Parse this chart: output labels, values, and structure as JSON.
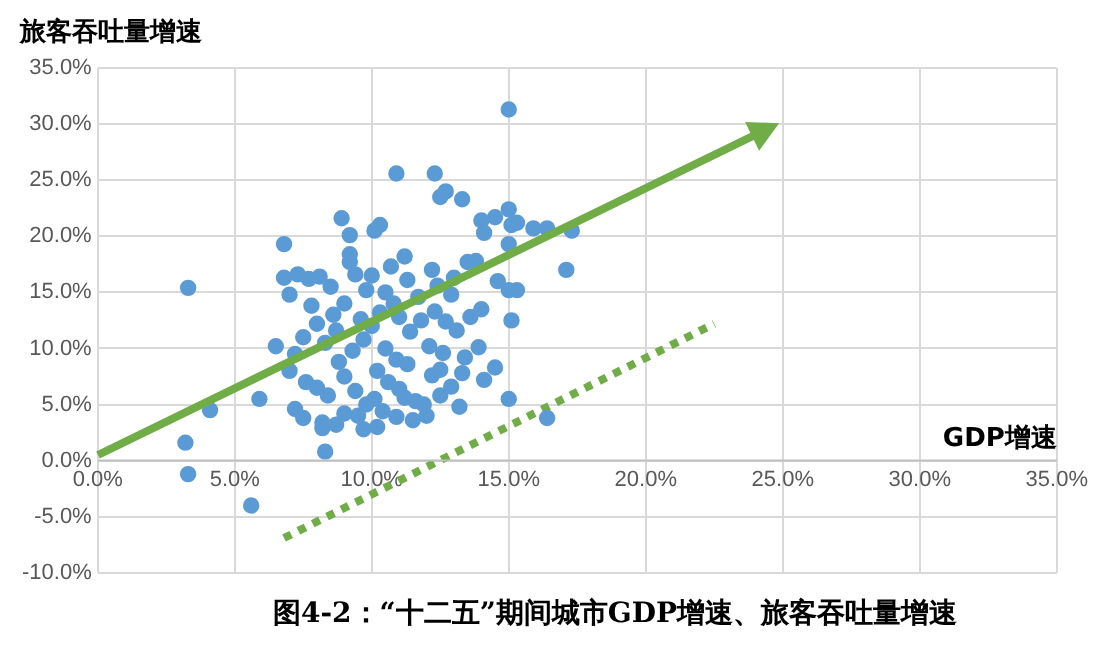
{
  "chart_data": {
    "type": "scatter",
    "title": "图4-2：“十二五”期间城市GDP增速、旅客吞吐量增速",
    "xlabel": "GDP增速",
    "ylabel": "旅客吞吐量增速",
    "xlim": [
      0,
      35
    ],
    "ylim": [
      -10,
      35
    ],
    "xticks": [
      {
        "value": 0,
        "label": "0.0%"
      },
      {
        "value": 5,
        "label": "5.0%"
      },
      {
        "value": 10,
        "label": "10.0%"
      },
      {
        "value": 15,
        "label": "15.0%"
      },
      {
        "value": 20,
        "label": "20.0%"
      },
      {
        "value": 25,
        "label": "25.0%"
      },
      {
        "value": 30,
        "label": "30.0%"
      },
      {
        "value": 35,
        "label": "35.0%"
      }
    ],
    "yticks": [
      {
        "value": -10,
        "label": "-10.0%"
      },
      {
        "value": -5,
        "label": "-5.0%"
      },
      {
        "value": 0,
        "label": "0.0%"
      },
      {
        "value": 5,
        "label": "5.0%"
      },
      {
        "value": 10,
        "label": "10.0%"
      },
      {
        "value": 15,
        "label": "15.0%"
      },
      {
        "value": 20,
        "label": "20.0%"
      },
      {
        "value": 25,
        "label": "25.0%"
      },
      {
        "value": 30,
        "label": "30.0%"
      },
      {
        "value": 35,
        "label": "35.0%"
      }
    ],
    "grid": true,
    "marker": "circle",
    "series": [
      {
        "color": "#5b9bd5",
        "x": [
          3.3,
          3.2,
          3.3,
          4.1,
          5.6,
          5.9,
          6.5,
          8.3,
          15.0,
          17.1,
          17.3,
          16.4,
          15.9,
          16.4,
          15.0,
          6.8,
          8.9,
          9.2,
          10.1,
          10.3,
          9.2,
          9.2,
          10.9,
          12.3,
          12.5,
          12.7,
          13.3,
          14.0,
          14.1,
          14.5,
          15.0,
          15.1,
          15.3,
          15.0,
          15.0,
          15.3,
          11.2,
          13.8,
          12.2,
          11.3,
          13.5,
          12.9,
          15.1,
          13.9,
          14.5,
          13.3,
          12.5,
          12.2,
          11.6,
          11.2,
          11.9,
          13.2,
          14.1,
          6.8,
          7.0,
          7.3,
          7.7,
          8.1,
          8.5,
          9.4,
          10.0,
          9.8,
          10.5,
          9.0,
          8.6,
          8.0,
          7.5,
          7.2,
          7.0,
          7.6,
          8.0,
          8.4,
          7.2,
          7.5,
          8.2,
          8.7,
          9.0,
          9.5,
          9.8,
          9.4,
          9.0,
          8.8,
          9.3,
          9.7,
          10.0,
          10.3,
          10.8,
          11.0,
          11.4,
          11.8,
          12.3,
          12.7,
          13.1,
          13.6,
          14.0,
          10.5,
          10.9,
          11.3,
          10.2,
          10.6,
          11.0,
          10.1,
          10.4,
          10.9,
          11.5,
          12.0,
          12.5,
          12.9,
          13.4,
          12.1,
          12.6,
          9.6,
          8.3,
          8.7,
          7.8,
          11.7,
          12.4,
          13.0,
          10.7,
          14.6,
          8.2,
          9.7,
          10.2
        ],
        "values": [
          15.4,
          1.6,
          -1.2,
          4.5,
          -4.0,
          5.5,
          10.2,
          0.8,
          31.3,
          17.0,
          20.5,
          20.7,
          20.7,
          3.8,
          5.5,
          19.3,
          21.6,
          20.1,
          20.5,
          21.0,
          18.4,
          17.7,
          25.6,
          25.6,
          23.5,
          24.0,
          23.3,
          21.4,
          20.3,
          21.7,
          22.4,
          21.0,
          21.2,
          19.3,
          15.2,
          15.2,
          18.2,
          17.8,
          17.0,
          16.1,
          17.7,
          14.8,
          12.5,
          10.1,
          8.3,
          7.8,
          8.1,
          7.6,
          5.3,
          5.6,
          5.0,
          4.8,
          7.2,
          16.3,
          14.8,
          16.6,
          16.2,
          16.4,
          15.5,
          16.6,
          16.5,
          15.2,
          15.0,
          14.0,
          13.0,
          12.2,
          11.0,
          9.5,
          8.0,
          7.0,
          6.5,
          5.8,
          4.6,
          3.8,
          3.4,
          3.2,
          4.2,
          4.0,
          5.0,
          6.2,
          7.5,
          8.8,
          9.8,
          10.8,
          12.0,
          13.2,
          14.0,
          12.8,
          11.5,
          12.5,
          13.3,
          12.4,
          11.6,
          12.8,
          13.5,
          10.0,
          9.0,
          8.6,
          8.0,
          7.0,
          6.4,
          5.5,
          4.4,
          3.9,
          3.6,
          4.0,
          5.8,
          6.6,
          9.2,
          10.2,
          9.6,
          12.6,
          10.5,
          11.6,
          13.8,
          14.6,
          15.6,
          16.3,
          17.3,
          16.0,
          2.9,
          2.8,
          3.0
        ]
      },
      {
        "type": "line",
        "marker": "none",
        "color": "#70ad47",
        "line_style": "dotted",
        "x": [
          6.8,
          22.5
        ],
        "values": [
          -6.9,
          12.2
        ]
      }
    ]
  }
}
